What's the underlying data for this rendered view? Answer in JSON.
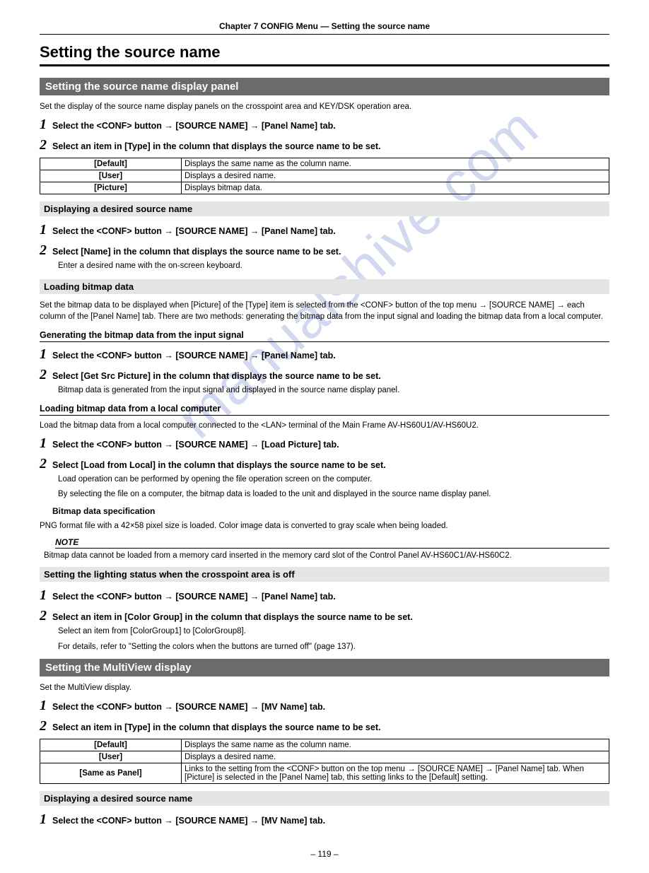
{
  "chapter_header": "Chapter 7 CONFIG Menu — Setting the source name",
  "page_title": "Setting the source name",
  "watermark": "manualshive.com",
  "page_number": "– 119 –",
  "sec1": {
    "bar": "Setting the source name display panel",
    "intro": "Set the display of the source name display panels on the crosspoint area and KEY/DSK operation area.",
    "step1": "Select the <CONF> button → [SOURCE NAME] → [Panel Name] tab.",
    "step2": "Select an item in [Type] in the column that displays the source name to be set.",
    "table": [
      [
        "[Default]",
        "Displays the same name as the column name."
      ],
      [
        "[User]",
        "Displays a desired name."
      ],
      [
        "[Picture]",
        "Displays bitmap data."
      ]
    ]
  },
  "sec2": {
    "heading": "Displaying a desired source name",
    "step1": "Select the <CONF> button → [SOURCE NAME] → [Panel Name] tab.",
    "step2": "Select [Name] in the column that displays the source name to be set.",
    "sub": "Enter a desired name with the on-screen keyboard."
  },
  "sec3": {
    "heading": "Loading bitmap data",
    "intro": "Set the bitmap data to be displayed when [Picture] of the [Type] item is selected from the <CONF> button of the top menu → [SOURCE NAME] → each column of the [Panel Name] tab. There are two methods: generating the bitmap data from the input signal and loading the bitmap data from a local computer.",
    "gen_heading": "Generating the bitmap data from the input signal",
    "gen_step1": "Select the <CONF> button → [SOURCE NAME] → [Panel Name] tab.",
    "gen_step2": "Select [Get Src Picture] in the column that displays the source name to be set.",
    "gen_sub": "Bitmap data is generated from the input signal and displayed in the source name display panel.",
    "load_heading": "Loading bitmap data from a local computer",
    "load_intro": "Load the bitmap data from a local computer connected to the <LAN> terminal of the Main Frame AV-HS60U1/AV-HS60U2.",
    "load_step1": "Select the <CONF> button → [SOURCE NAME] → [Load Picture] tab.",
    "load_step2": "Select [Load from Local] in the column that displays the source name to be set.",
    "load_sub1": "Load operation can be performed by opening the file operation screen on the computer.",
    "load_sub2": "By selecting the file on a computer, the bitmap data is loaded to the unit and displayed in the source name display panel.",
    "spec_heading": "Bitmap data specification",
    "spec_text": "PNG format file with a 42×58 pixel size is loaded. Color image data is converted to gray scale when being loaded.",
    "note_label": "NOTE",
    "note_text": "Bitmap data cannot be loaded from a memory card inserted in the memory card slot of the Control Panel AV-HS60C1/AV-HS60C2."
  },
  "sec4": {
    "heading": "Setting the lighting status when the crosspoint area is off",
    "step1": "Select the <CONF> button → [SOURCE NAME] → [Panel Name] tab.",
    "step2": "Select an item in [Color Group] in the column that displays the source name to be set.",
    "sub1": "Select an item from [ColorGroup1] to [ColorGroup8].",
    "sub2": "For details, refer to \"Setting the colors when the buttons are turned off\" (page 137)."
  },
  "sec5": {
    "bar": "Setting the MultiView display",
    "intro": "Set the MultiView display.",
    "step1": "Select the <CONF> button → [SOURCE NAME] → [MV Name] tab.",
    "step2": "Select an item in [Type] in the column that displays the source name to be set.",
    "table": [
      [
        "[Default]",
        "Displays the same name as the column name."
      ],
      [
        "[User]",
        "Displays a desired name."
      ],
      [
        "[Same as Panel]",
        "Links to the setting from the <CONF> button on the top menu → [SOURCE NAME] → [Panel Name] tab. When [Picture] is selected in the [Panel Name] tab, this setting links to the [Default] setting."
      ]
    ]
  },
  "sec6": {
    "heading": "Displaying a desired source name",
    "step1": "Select the <CONF> button → [SOURCE NAME] → [MV Name] tab."
  }
}
